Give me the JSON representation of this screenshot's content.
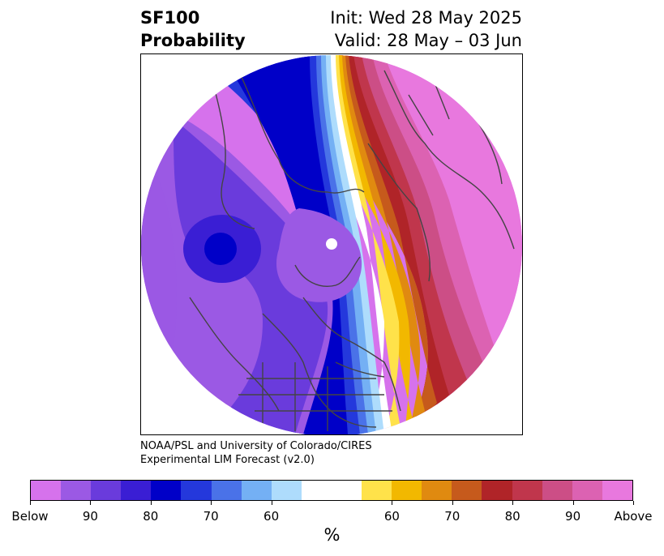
{
  "header": {
    "title_line1": "SF100",
    "title_line2": "Probability",
    "init": "Init: Wed 28 May 2025",
    "valid": "Valid: 28 May – 03 Jun"
  },
  "credit": {
    "line1": "NOAA/PSL and University of Colorado/CIRES",
    "line2": "Experimental LIM Forecast (v2.0)"
  },
  "colorbar": {
    "colors": [
      "#d672ec",
      "#9b59e4",
      "#6a3bdc",
      "#3a1ed4",
      "#0000c8",
      "#2438dc",
      "#4a72e8",
      "#74b0f4",
      "#aedcfc",
      "#ffffff",
      "#ffffff",
      "#ffe24a",
      "#f2b800",
      "#e08a10",
      "#c65a1c",
      "#b02428",
      "#c0364c",
      "#cc4e86",
      "#dc62b2",
      "#e878de"
    ],
    "tick_labels": [
      "Below",
      "90",
      "80",
      "70",
      "60",
      "60",
      "70",
      "80",
      "90",
      "Above"
    ],
    "unit": "%"
  }
}
